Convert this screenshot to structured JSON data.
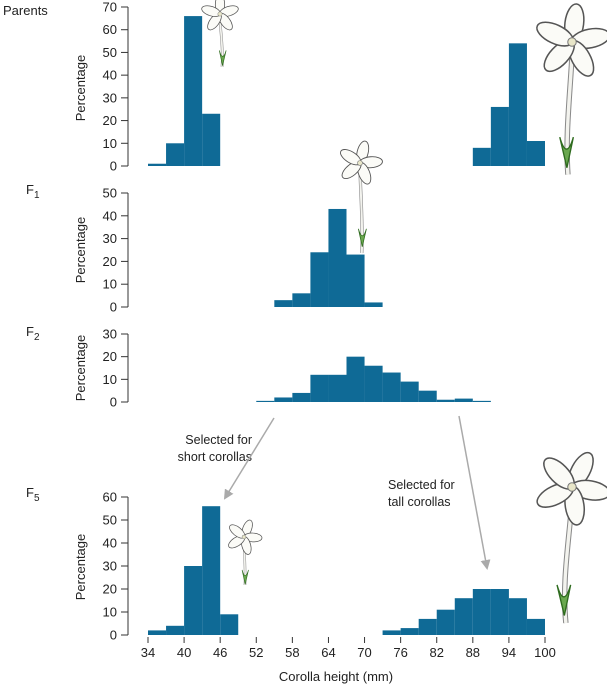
{
  "figure": {
    "xlabel": "Corolla height (mm)",
    "x_ticks": [
      34,
      40,
      46,
      52,
      58,
      64,
      70,
      76,
      82,
      88,
      94,
      100
    ],
    "bar_color": "#0f6a96",
    "axis_color": "#333333",
    "arrow_color": "#aaaaaa",
    "flower_icon": "tobacco-flower-icon"
  },
  "annotations": {
    "short_line1": "Selected for",
    "short_line2": "short corollas",
    "tall_line1": "Selected for",
    "tall_line2": "tall corollas"
  },
  "chart_data": [
    {
      "type": "bar",
      "generation": "Parents",
      "gen_main": "Parents",
      "gen_sub": "",
      "ylabel": "Percentage",
      "ylim": [
        0,
        70
      ],
      "yticks": [
        0,
        10,
        20,
        30,
        40,
        50,
        60,
        70
      ],
      "xlim": [
        34,
        100
      ],
      "bin_width": 3,
      "series": [
        {
          "name": "",
          "x": [
            34,
            37,
            40,
            43
          ],
          "values": [
            1,
            10,
            66,
            23
          ]
        },
        {
          "name": "",
          "x": [
            88,
            91,
            94,
            97
          ],
          "values": [
            8,
            26,
            54,
            11
          ]
        }
      ]
    },
    {
      "type": "bar",
      "generation": "F1",
      "gen_main": "F",
      "gen_sub": "1",
      "ylabel": "Percentage",
      "ylim": [
        0,
        50
      ],
      "yticks": [
        0,
        10,
        20,
        30,
        40,
        50
      ],
      "xlim": [
        34,
        100
      ],
      "bin_width": 3,
      "series": [
        {
          "name": "",
          "x": [
            55,
            58,
            61,
            64,
            67,
            70
          ],
          "values": [
            3,
            6,
            24,
            43,
            23,
            2
          ]
        }
      ]
    },
    {
      "type": "bar",
      "generation": "F2",
      "gen_main": "F",
      "gen_sub": "2",
      "ylabel": "Percentage",
      "ylim": [
        0,
        30
      ],
      "yticks": [
        0,
        10,
        20,
        30
      ],
      "xlim": [
        34,
        100
      ],
      "bin_width": 3,
      "series": [
        {
          "name": "",
          "x": [
            52,
            55,
            58,
            61,
            64,
            67,
            70,
            73,
            76,
            79,
            82,
            85,
            88
          ],
          "values": [
            0.5,
            2,
            4,
            12,
            12,
            20,
            16,
            13,
            9,
            5,
            1,
            1.5,
            0.5
          ]
        }
      ]
    },
    {
      "type": "bar",
      "generation": "F5",
      "gen_main": "F",
      "gen_sub": "5",
      "ylabel": "Percentage",
      "ylim": [
        0,
        60
      ],
      "yticks": [
        0,
        10,
        20,
        30,
        40,
        50,
        60
      ],
      "xlim": [
        34,
        100
      ],
      "bin_width": 3,
      "series": [
        {
          "name": "",
          "x": [
            34,
            37,
            40,
            43,
            46
          ],
          "values": [
            2,
            4,
            30,
            56,
            9
          ]
        },
        {
          "name": "",
          "x": [
            73,
            76,
            79,
            82,
            85,
            88,
            91,
            94,
            97
          ],
          "values": [
            2,
            3,
            7,
            11,
            16,
            20,
            20,
            16,
            7
          ]
        }
      ]
    }
  ]
}
